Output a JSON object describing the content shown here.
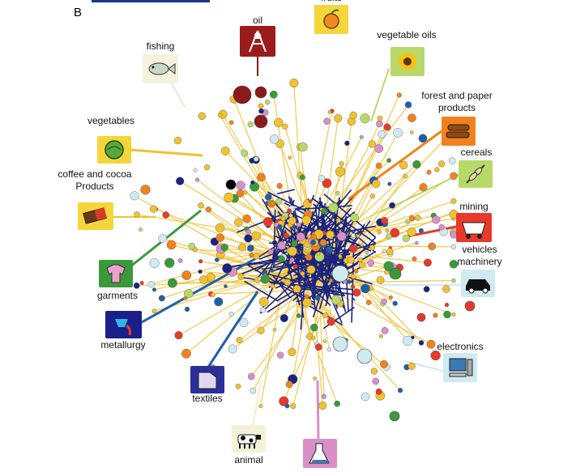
{
  "panel_letter": "B",
  "categories": {
    "fruits": "fruits",
    "oil": "oil",
    "fishing": "fishing",
    "vegetable_oils": "vegetable oils",
    "forest": "forest and paper products",
    "vegetables": "vegetables",
    "cereals": "cereals",
    "coffee": "coffee and cocoa Products",
    "mining": "mining",
    "vehicles": "vehicles machinery",
    "garments": "garments",
    "metallurgy": "metallurgy",
    "electronics": "electronics",
    "textiles": "textiles",
    "animal": "animal"
  },
  "icons": {
    "fruits": "fruit-icon",
    "oil": "oil-rig-icon",
    "fishing": "fish-icon",
    "vegetable_oils": "sunflower-icon",
    "forest": "logs-icon",
    "vegetables": "lettuce-icon",
    "cereals": "wheat-icon",
    "coffee": "chocolate-bar-icon",
    "mining": "mine-cart-icon",
    "vehicles": "car-icon",
    "garments": "sweater-icon",
    "metallurgy": "foundry-icon",
    "electronics": "computer-icon",
    "textiles": "fabric-icon",
    "animal": "cow-icon",
    "chemicals": "flask-icon"
  },
  "colors": {
    "background": "#ffffff",
    "network_edge_dark": "#1a237e",
    "network_edge_yellow": "#f2c12e",
    "oil": "#8b1a1a",
    "garments_green": "#3a9a3a",
    "forest_orange": "#f0821e",
    "mining_red": "#e8392a",
    "electronics_light": "#cfeaf0",
    "metallurgy_blue": "#1f5fa8",
    "chemicals_pink": "#d98fc8",
    "cereals_green": "#b7d96a"
  }
}
